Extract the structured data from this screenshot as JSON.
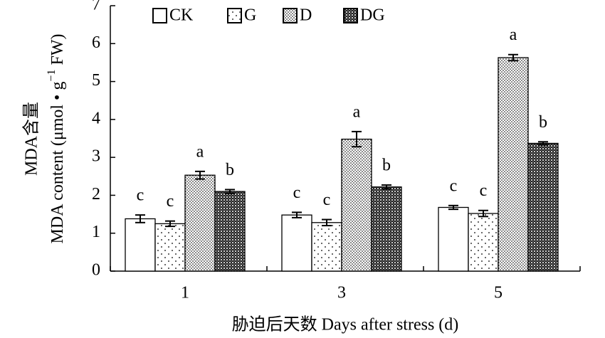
{
  "chart_data": {
    "type": "bar",
    "categories": [
      "1",
      "3",
      "5"
    ],
    "series": [
      {
        "name": "CK",
        "pattern": "none",
        "color": "#000000",
        "values": [
          1.38,
          1.48,
          1.68
        ],
        "errors": [
          0.1,
          0.07,
          0.05
        ],
        "labels": [
          "c",
          "c",
          "c"
        ]
      },
      {
        "name": "G",
        "pattern": "sparse-dots",
        "color": "#000000",
        "values": [
          1.25,
          1.28,
          1.52
        ],
        "errors": [
          0.07,
          0.08,
          0.08
        ],
        "labels": [
          "c",
          "c",
          "c"
        ]
      },
      {
        "name": "D",
        "pattern": "dense-dots",
        "color": "#000000",
        "values": [
          2.53,
          3.48,
          5.63
        ],
        "errors": [
          0.1,
          0.2,
          0.08
        ],
        "labels": [
          "a",
          "a",
          "a"
        ]
      },
      {
        "name": "DG",
        "pattern": "crosshatch",
        "color": "#000000",
        "values": [
          2.1,
          2.22,
          3.37
        ],
        "errors": [
          0.05,
          0.05,
          0.04
        ],
        "labels": [
          "b",
          "b",
          "b"
        ]
      }
    ],
    "ylim": [
      0,
      7
    ],
    "yticks": [
      0,
      1,
      2,
      3,
      4,
      5,
      6,
      7
    ],
    "ylabel": {
      "line1": "MDA含量",
      "line2": "MDA content (μmol • g",
      "line2_sup": "−1",
      "line2_end": " FW)"
    },
    "xlabel": "胁迫后天数 Days after stress (d)",
    "legend": "top",
    "grid": false
  }
}
